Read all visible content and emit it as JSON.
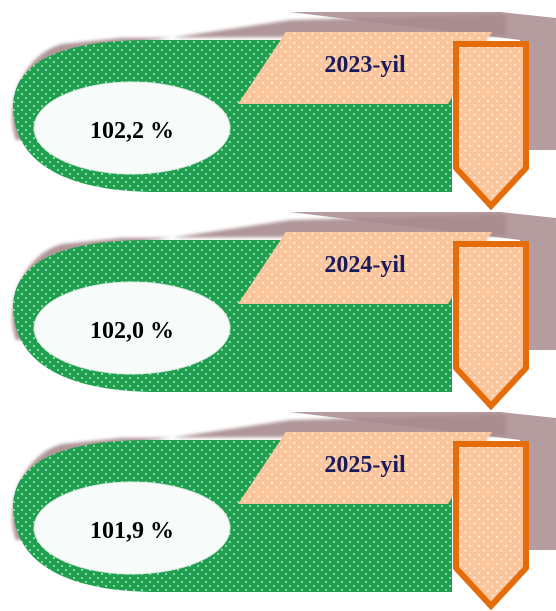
{
  "colors": {
    "green": "#1f9f4f",
    "green_dot": "#8fe0a8",
    "shadow": "#a88b8e",
    "peach": "#fbc59c",
    "peach_dot": "#fff2e6",
    "orange": "#e46c0a",
    "year_text": "#1a1a5e",
    "value_text": "#000000",
    "oval_fill": "#f7fbf9"
  },
  "items": [
    {
      "year": "2023-yil",
      "value": "102,2 %"
    },
    {
      "year": "2024-yil",
      "value": "102,0 %"
    },
    {
      "year": "2025-yil",
      "value": "101,9 %"
    }
  ]
}
